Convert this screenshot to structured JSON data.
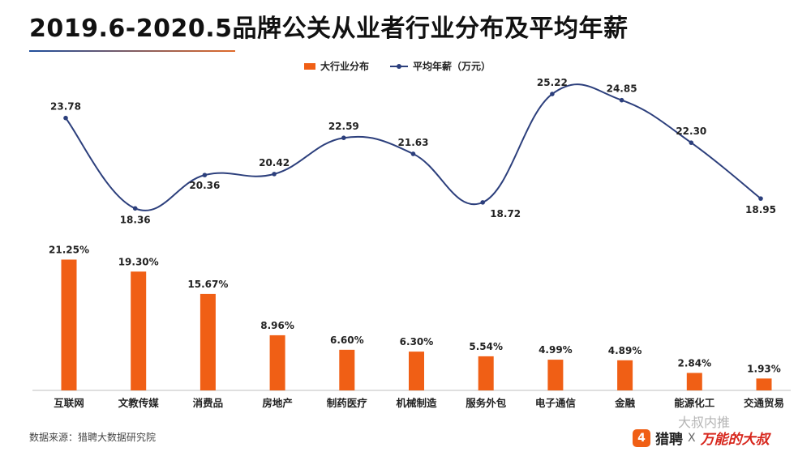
{
  "header": {
    "title": "2019.6-2020.5品牌公关从业者行业分布及平均年薪"
  },
  "legend": {
    "bar_label": "大行业分布",
    "line_label": "平均年薪（万元）"
  },
  "chart_data": {
    "type": "bar+line",
    "title": "2019.6-2020.5品牌公关从业者行业分布及平均年薪",
    "categories": [
      "互联网",
      "文教传媒",
      "消费品",
      "房地产",
      "制药医疗",
      "机械制造",
      "服务外包",
      "电子通信",
      "金融",
      "能源化工",
      "交通贸易"
    ],
    "series": [
      {
        "name": "大行业分布",
        "type": "bar",
        "values": [
          21.25,
          19.3,
          15.67,
          8.96,
          6.6,
          6.3,
          5.54,
          4.99,
          4.89,
          2.84,
          1.93
        ],
        "labels": [
          "21.25%",
          "19.30%",
          "15.67%",
          "8.96%",
          "6.60%",
          "6.30%",
          "5.54%",
          "4.99%",
          "4.89%",
          "2.84%",
          "1.93%"
        ],
        "color": "#f05f15"
      },
      {
        "name": "平均年薪（万元）",
        "type": "line",
        "smooth": true,
        "values": [
          23.78,
          18.36,
          20.36,
          20.42,
          22.59,
          21.63,
          18.72,
          25.22,
          24.85,
          22.3,
          18.95
        ],
        "labels": [
          "23.78",
          "18.36",
          "20.36",
          "20.42",
          "22.59",
          "21.63",
          "18.72",
          "25.22",
          "24.85",
          "22.30",
          "18.95"
        ],
        "color": "#2c3f7c"
      }
    ],
    "xlabel": "",
    "ylabel": "",
    "grid": false,
    "legend_position": "top-center"
  },
  "footer": {
    "source": "数据来源：猎聘大数据研究院",
    "brand_icon": "4",
    "brand_a": "猎聘",
    "brand_x": "X",
    "brand_b": "万能的大叔",
    "watermark": "大叔内推"
  }
}
